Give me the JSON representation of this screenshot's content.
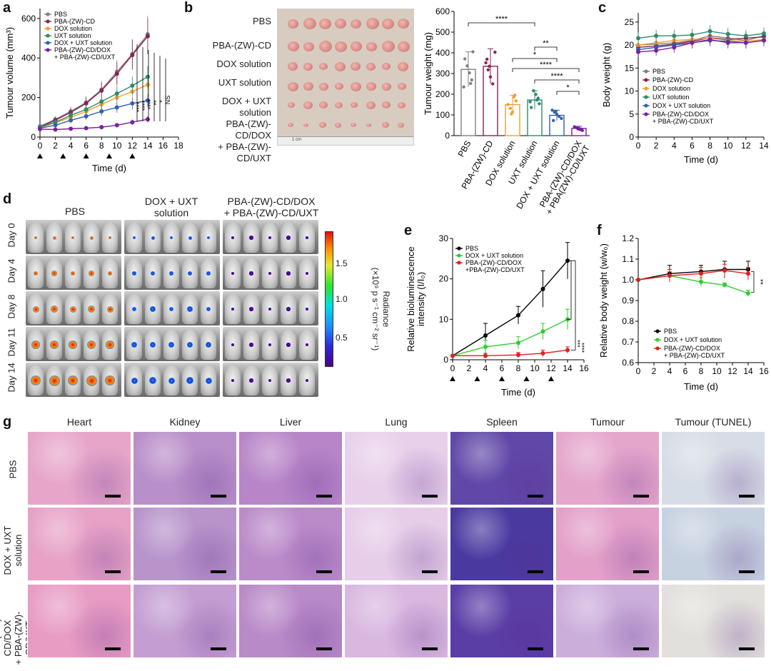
{
  "panels": [
    "a",
    "b",
    "c",
    "d",
    "e",
    "f",
    "g"
  ],
  "colors": {
    "pbs": "#808080",
    "pba_cd": "#8b2252",
    "dox": "#f0a030",
    "uxt": "#2e8b6a",
    "dox_uxt": "#3060b0",
    "pba_combo": "#7a1fa2",
    "e_pbs": "#000000",
    "e_dox_uxt": "#2ecc2e",
    "e_pba": "#e02020"
  },
  "chart_data": [
    {
      "id": "a",
      "type": "line",
      "xlabel": "Time (d)",
      "ylabel": "Tumour volume (mm³)",
      "xticks": [
        "0",
        "2",
        "4",
        "6",
        "8",
        "10",
        "12",
        "14",
        "16",
        "18"
      ],
      "yticks": [
        "0",
        "200",
        "400",
        "600"
      ],
      "xlim": [
        0,
        18
      ],
      "ylim": [
        0,
        650
      ],
      "dosing_days": [
        0,
        3,
        6,
        9,
        12
      ],
      "x": [
        0,
        2,
        4,
        6,
        8,
        10,
        12,
        14
      ],
      "series": [
        {
          "name": "PBS",
          "values": [
            55,
            90,
            130,
            175,
            240,
            330,
            420,
            520
          ]
        },
        {
          "name": "PBA-(ZW)-CD",
          "values": [
            50,
            85,
            125,
            170,
            235,
            320,
            415,
            510
          ]
        },
        {
          "name": "DOX solution",
          "values": [
            48,
            72,
            100,
            130,
            165,
            200,
            230,
            265
          ]
        },
        {
          "name": "UXT solution",
          "values": [
            50,
            75,
            110,
            140,
            180,
            220,
            260,
            305
          ]
        },
        {
          "name": "DOX + UXT solution",
          "values": [
            45,
            60,
            85,
            105,
            130,
            150,
            170,
            185
          ]
        },
        {
          "name": "PBA-(ZW)-CD/DOX\n+ PBA-(ZW)-CD/UXT",
          "values": [
            40,
            38,
            42,
            45,
            50,
            60,
            75,
            90
          ]
        }
      ],
      "significance": [
        "****",
        "****",
        "****",
        "**",
        "*",
        "NS"
      ]
    },
    {
      "id": "b_bar",
      "type": "bar",
      "ylabel": "Tumour weight (mg)",
      "ylim": [
        0,
        600
      ],
      "yticks": [
        "0",
        "100",
        "200",
        "300",
        "400",
        "500",
        "600"
      ],
      "categories": [
        "PBS",
        "PBA-(ZW)-CD",
        "DOX solution",
        "UXT solution",
        "DOX + UXT solution",
        "PBA-(ZW)-CD/DOX\n+ PBA(ZW)-CD/UXT"
      ],
      "values": [
        320,
        335,
        150,
        172,
        98,
        35
      ],
      "errors": [
        85,
        85,
        45,
        45,
        25,
        10
      ],
      "significance": [
        "****",
        "**",
        "*",
        "****",
        "****",
        "*"
      ]
    },
    {
      "id": "c",
      "type": "line",
      "xlabel": "Time (d)",
      "ylabel": "Body weight (g)",
      "xticks": [
        "0",
        "2",
        "4",
        "6",
        "8",
        "10",
        "12",
        "14"
      ],
      "yticks": [
        "0",
        "5",
        "10",
        "15",
        "20",
        "25"
      ],
      "xlim": [
        0,
        14
      ],
      "ylim": [
        0,
        27
      ],
      "x": [
        0,
        2,
        4,
        6,
        8,
        10,
        12,
        14
      ],
      "series": [
        {
          "name": "PBS",
          "values": [
            20,
            20.2,
            20.5,
            21,
            22,
            21.5,
            21,
            22
          ]
        },
        {
          "name": "PBA-(ZW)-CD",
          "values": [
            19.5,
            19.8,
            20.2,
            20.8,
            21.6,
            21.2,
            21.5,
            21.8
          ]
        },
        {
          "name": "DOX solution",
          "values": [
            20,
            20.5,
            21,
            21.2,
            21.5,
            21,
            20.8,
            21.2
          ]
        },
        {
          "name": "UXT solution",
          "values": [
            21.5,
            22,
            22,
            22.2,
            23,
            22.4,
            22,
            22.5
          ]
        },
        {
          "name": "DOX + UXT solution",
          "values": [
            19,
            19.5,
            20,
            20.5,
            21,
            20.8,
            20.5,
            21
          ]
        },
        {
          "name": "PBA-(ZW)-CD/DOX\n+ PBA-(ZW)-CD/UXT",
          "values": [
            18.5,
            18.8,
            19.5,
            20.5,
            21.2,
            20.5,
            20.5,
            21
          ]
        }
      ]
    },
    {
      "id": "e",
      "type": "line",
      "xlabel": "Time (d)",
      "ylabel": "Relative bioluminescence\nintensity (I/I₀)",
      "xticks": [
        "0",
        "2",
        "4",
        "6",
        "8",
        "10",
        "12",
        "14",
        "16"
      ],
      "yticks": [
        "0",
        "10",
        "20",
        "30"
      ],
      "xlim": [
        0,
        16
      ],
      "ylim": [
        0,
        30
      ],
      "dosing_days": [
        0,
        3,
        6,
        9,
        12
      ],
      "x": [
        0,
        4,
        8,
        11,
        14
      ],
      "series": [
        {
          "name": "PBS",
          "values": [
            1,
            6,
            11,
            17.5,
            24.5
          ]
        },
        {
          "name": "DOX + UXT solution",
          "values": [
            1,
            3.2,
            4.2,
            7,
            10
          ]
        },
        {
          "name": "PBA-(ZW)-CD/DOX\n+PBA-(ZW)-CD/UXT",
          "values": [
            1,
            1,
            1.2,
            1.6,
            2.4
          ]
        }
      ],
      "errors": [
        [
          0,
          3,
          2.2,
          4.5,
          4.5
        ],
        [
          0,
          1.6,
          1.5,
          2,
          2.5
        ],
        [
          0,
          0.6,
          0.6,
          0.8,
          0.8
        ]
      ],
      "significance": [
        "***",
        "****"
      ]
    },
    {
      "id": "f",
      "type": "line",
      "xlabel": "Time (d)",
      "ylabel": "Relative body weight (w/w₀)",
      "xticks": [
        "0",
        "2",
        "4",
        "6",
        "8",
        "10",
        "12",
        "14",
        "16"
      ],
      "yticks": [
        "0.6",
        "0.7",
        "0.8",
        "0.9",
        "1.0",
        "1.1",
        "1.2"
      ],
      "xlim": [
        0,
        16
      ],
      "ylim": [
        0.6,
        1.2
      ],
      "x": [
        0,
        4,
        8,
        11,
        14
      ],
      "series": [
        {
          "name": "PBS",
          "values": [
            1.0,
            1.03,
            1.04,
            1.05,
            1.05
          ]
        },
        {
          "name": "DOX + UXT solution",
          "values": [
            1.0,
            1.02,
            0.99,
            0.975,
            0.935
          ]
        },
        {
          "name": "PBA-(ZW)-CD/DOX\n+ PBA-(ZW)-CD/UXT",
          "values": [
            1.0,
            1.02,
            1.03,
            1.045,
            1.03
          ]
        }
      ],
      "errors": [
        [
          0,
          0.04,
          0.03,
          0.04,
          0.04
        ],
        [
          0,
          0.02,
          0.02,
          0.01,
          0.015
        ],
        [
          0,
          0.03,
          0.03,
          0.03,
          0.03
        ]
      ],
      "significance": [
        "**"
      ]
    }
  ],
  "panel_b": {
    "rows": [
      "PBS",
      "PBA-(ZW)-CD",
      "DOX solution",
      "UXT solution",
      "DOX + UXT\nsolution",
      "PBA-(ZW)-CD/DOX\n+ PBA-(ZW)-CD/UXT"
    ],
    "ruler_label": "1 cm"
  },
  "panel_d": {
    "columns": [
      "PBS",
      "DOX + UXT\nsolution",
      "PBA-(ZW)-CD/DOX\n+ PBA-(ZW)-CD/UXT"
    ],
    "days": [
      "Day 0",
      "Day 4",
      "Day 8",
      "Day 11",
      "Day 14"
    ],
    "colorbar_ticks": [
      "1.5",
      "1.0",
      "0.5"
    ],
    "colorbar_label": "Radiance\n(×10⁹ p s⁻¹ cm⁻² sr⁻¹)"
  },
  "panel_g": {
    "columns": [
      "Heart",
      "Kidney",
      "Liver",
      "Lung",
      "Spleen",
      "Tumour",
      "Tumour (TUNEL)"
    ],
    "rows": [
      "PBS",
      "DOX + UXT\nsolution",
      "PBA-(ZW)-CD/DOX\n+ PBA-(ZW)-CD/UXT"
    ]
  }
}
